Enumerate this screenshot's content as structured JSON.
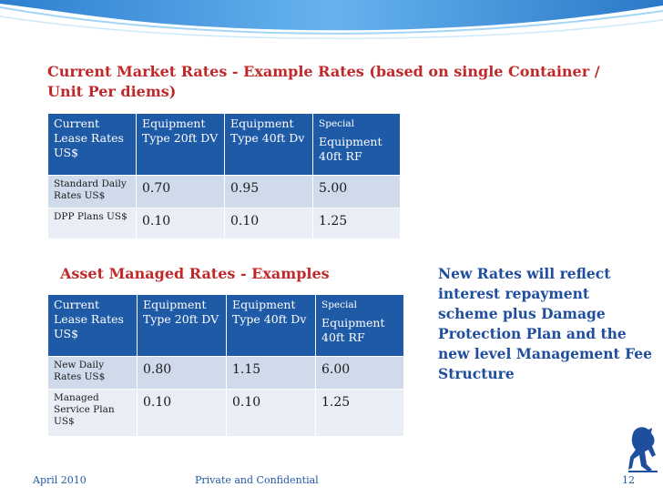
{
  "title": "Current Market Rates  - Example Rates  (based on single Container / Unit Per diems)",
  "table1": {
    "headers": [
      "Current Lease Rates US$",
      "Equipment Type 20ft DV",
      "Equipment Type 40ft Dv",
      "Special",
      "Equipment 40ft RF"
    ],
    "rows": [
      {
        "label": "Standard  Daily Rates   US$",
        "v1": "0.70",
        "v2": "0.95",
        "v3": "5.00"
      },
      {
        "label": "DPP Plans US$",
        "v1": "0.10",
        "v2": "0.10",
        "v3": "1.25"
      }
    ]
  },
  "subtitle": "Asset Managed Rates - Examples",
  "table2": {
    "headers": [
      "Current Lease Rates US$",
      "Equipment Type 20ft DV",
      "Equipment Type 40ft Dv",
      "Special",
      "Equipment 40ft RF"
    ],
    "rows": [
      {
        "label": "New  Daily Rates   US$",
        "v1": "0.80",
        "v2": "1.15",
        "v3": "6.00"
      },
      {
        "label": "Managed Service Plan US$",
        "v1": "0.10",
        "v2": "0.10",
        "v3": "1.25"
      }
    ]
  },
  "note": "New Rates will reflect interest repayment scheme plus Damage Protection Plan and the new level Management Fee Structure",
  "footer": {
    "date": "April 2010",
    "confidential": "Private and Confidential",
    "page": "12"
  },
  "colors": {
    "title": "#c0282a",
    "header_bg": "#1f5aa6",
    "note": "#1f4e9e"
  }
}
